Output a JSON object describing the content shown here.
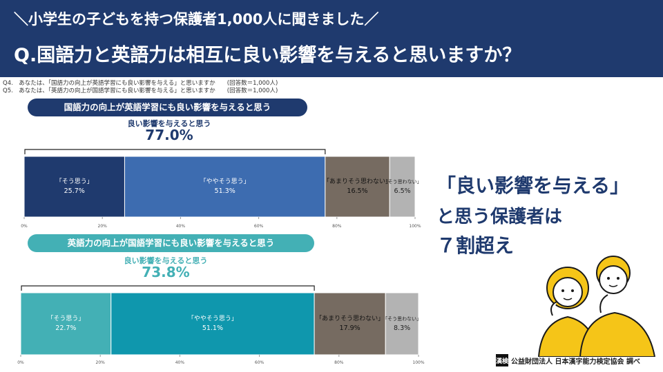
{
  "header": {
    "subtitle": "＼小学生の子どもを持つ保護者1,000人に聞きました／",
    "title": "Q.国語力と英語力は相互に良い影響を与えると思いますか？"
  },
  "questions": [
    "Q4.　あなたは、「国語力の向上が英語学習にも良い影響を与える」と思いますか　　(回答数＝1,000人)",
    "Q5.　あなたは、「英語力の向上が国語学習にも良い影響を与える」と思いますか　　(回答数＝1,000人)"
  ],
  "chart_data": [
    {
      "type": "bar",
      "orientation": "horizontal-stacked-100",
      "title": "国語力の向上が英語学習にも良い影響を与えると思う",
      "summary_label": "良い影響を与えると思う",
      "summary_value": "77.0%",
      "xlim": [
        0,
        100
      ],
      "ticks": [
        "0%",
        "20%",
        "40%",
        "60%",
        "80%",
        "100%"
      ],
      "tick_values": [
        0,
        20,
        40,
        60,
        80,
        100
      ],
      "series": [
        {
          "name": "「そう思う」",
          "value": 25.7,
          "label": "25.7%",
          "color": "#1f3a6e"
        },
        {
          "name": "「ややそう思う」",
          "value": 51.3,
          "label": "51.3%",
          "color": "#3d6cb0"
        },
        {
          "name": "「あまりそう思わない」",
          "value": 16.5,
          "label": "16.5%",
          "color": "#766b61"
        },
        {
          "name": "「そう思わない」",
          "value": 6.5,
          "label": "6.5%",
          "color": "#b3b3b3"
        }
      ]
    },
    {
      "type": "bar",
      "orientation": "horizontal-stacked-100",
      "title": "英語力の向上が国語学習にも良い影響を与えると思う",
      "summary_label": "良い影響を与えると思う",
      "summary_value": "73.8%",
      "xlim": [
        0,
        100
      ],
      "ticks": [
        "0%",
        "20%",
        "40%",
        "60%",
        "80%",
        "100%"
      ],
      "tick_values": [
        0,
        20,
        40,
        60,
        80,
        100
      ],
      "series": [
        {
          "name": "「そう思う」",
          "value": 22.7,
          "label": "22.7%",
          "color": "#43b0b5"
        },
        {
          "name": "「ややそう思う」",
          "value": 51.1,
          "label": "51.1%",
          "color": "#0f97ad"
        },
        {
          "name": "「あまりそう思わない」",
          "value": 17.9,
          "label": "17.9%",
          "color": "#766b61"
        },
        {
          "name": "「そう思わない」",
          "value": 8.3,
          "label": "8.3%",
          "color": "#b3b3b3"
        }
      ]
    }
  ],
  "callout": {
    "line1": "「良い影響を与える」",
    "line2": "と思う保護者は",
    "line3": "７割超え"
  },
  "footer": {
    "logo": "漢検",
    "text": "公益財団法人 日本漢字能力検定協会 調べ"
  },
  "colors": {
    "navy": "#1f3a6e",
    "teal": "#43b0b5",
    "highlight_yellow": "#f5c518"
  }
}
